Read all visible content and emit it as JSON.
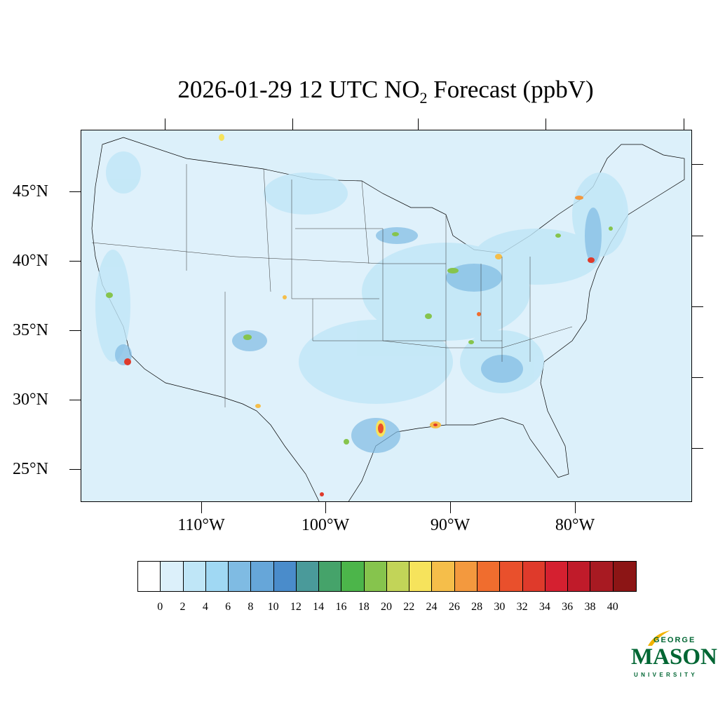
{
  "title": {
    "prefix": "2026-01-29 12 UTC NO",
    "subscript": "2",
    "suffix": " Forecast (ppbV)"
  },
  "axes": {
    "latitude_labels": [
      "45°N",
      "40°N",
      "35°N",
      "30°N",
      "25°N"
    ],
    "longitude_labels": [
      "110°W",
      "100°W",
      "90°W",
      "80°W"
    ]
  },
  "colorbar": {
    "tick_labels": [
      "0",
      "2",
      "4",
      "6",
      "8",
      "10",
      "12",
      "14",
      "16",
      "18",
      "20",
      "22",
      "24",
      "26",
      "28",
      "30",
      "32",
      "34",
      "36",
      "38",
      "40"
    ],
    "colors": [
      "#ffffff",
      "#dcf0fa",
      "#bfe6f7",
      "#a0d8f3",
      "#7fbbe3",
      "#66a6d9",
      "#4a8ccb",
      "#4a9a9a",
      "#45a36a",
      "#4cb54a",
      "#86c44d",
      "#c2d458",
      "#f6e35c",
      "#f5be4a",
      "#f3993e",
      "#f06d2e",
      "#e9502c",
      "#df3a2b",
      "#d52030",
      "#c01b2a",
      "#a81a22",
      "#8c1515"
    ]
  },
  "map": {
    "ocean_color": "#dcf0fa",
    "land_background_color": "#dcf0fa",
    "boundary_color": "#000000"
  },
  "logo": {
    "line1": "GEORGE",
    "line2": "MASON",
    "line3": "UNIVERSITY",
    "color": "#006633",
    "accent_color": "#f2b300"
  }
}
